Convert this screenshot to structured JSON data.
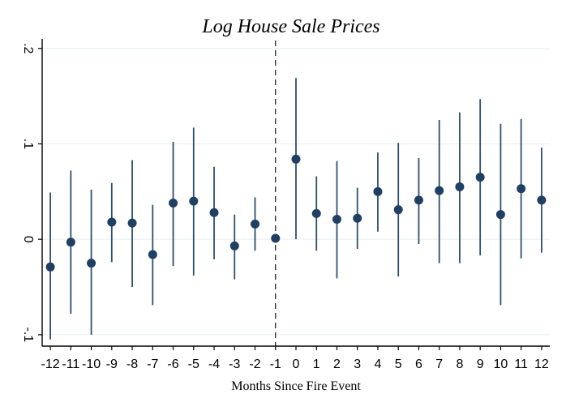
{
  "chart_data": {
    "type": "scatter",
    "title": "Log House Sale Prices",
    "xlabel": "Months Since Fire Event",
    "ylabel": "",
    "x": [
      -12,
      -11,
      -10,
      -9,
      -8,
      -7,
      -6,
      -5,
      -4,
      -3,
      -2,
      -1,
      0,
      1,
      2,
      3,
      4,
      5,
      6,
      7,
      8,
      9,
      10,
      11,
      12
    ],
    "series": [
      {
        "values": [
          -0.029,
          -0.003,
          -0.025,
          0.018,
          0.017,
          -0.016,
          0.038,
          0.04,
          0.028,
          -0.007,
          0.016,
          0.001,
          0.084,
          0.027,
          0.021,
          0.022,
          0.05,
          0.031,
          0.041,
          0.051,
          0.055,
          0.065,
          0.026,
          0.053,
          0.041
        ],
        "ci_lower": [
          -0.105,
          -0.078,
          -0.1,
          -0.024,
          -0.05,
          -0.069,
          -0.028,
          -0.038,
          -0.021,
          -0.042,
          -0.012,
          0.001,
          0.0,
          -0.012,
          -0.041,
          -0.01,
          0.008,
          -0.039,
          -0.005,
          -0.025,
          -0.025,
          -0.017,
          -0.069,
          -0.02,
          -0.014
        ],
        "ci_upper": [
          0.049,
          0.072,
          0.052,
          0.059,
          0.083,
          0.036,
          0.102,
          0.117,
          0.076,
          0.026,
          0.044,
          0.001,
          0.169,
          0.066,
          0.082,
          0.054,
          0.091,
          0.101,
          0.085,
          0.125,
          0.133,
          0.147,
          0.121,
          0.126,
          0.096
        ]
      }
    ],
    "xlim": [
      -12.4,
      12.4
    ],
    "ylim": [
      -0.112,
      0.21
    ],
    "x_ticks": [
      -12,
      -11,
      -10,
      -9,
      -8,
      -7,
      -6,
      -5,
      -4,
      -3,
      -2,
      -1,
      0,
      1,
      2,
      3,
      4,
      5,
      6,
      7,
      8,
      9,
      10,
      11,
      12
    ],
    "x_tick_labels": [
      "-12",
      "-11",
      "-10",
      "-9",
      "-8",
      "-7",
      "-6",
      "-5",
      "-4",
      "-3",
      "-2",
      "-1",
      "0",
      "1",
      "2",
      "3",
      "4",
      "5",
      "6",
      "7",
      "8",
      "9",
      "10",
      "11",
      "12"
    ],
    "y_ticks": [
      -0.1,
      0,
      0.1,
      0.2
    ],
    "y_tick_labels": [
      "-.1",
      "0",
      ".1",
      ".2"
    ],
    "reference_line_x": -1,
    "grid": true,
    "legend": "none",
    "colors": {
      "point": "#1f3f63",
      "ci": "#2e4f70",
      "grid": "#e8edf1",
      "axis": "#000000",
      "reference": "#000000"
    }
  }
}
